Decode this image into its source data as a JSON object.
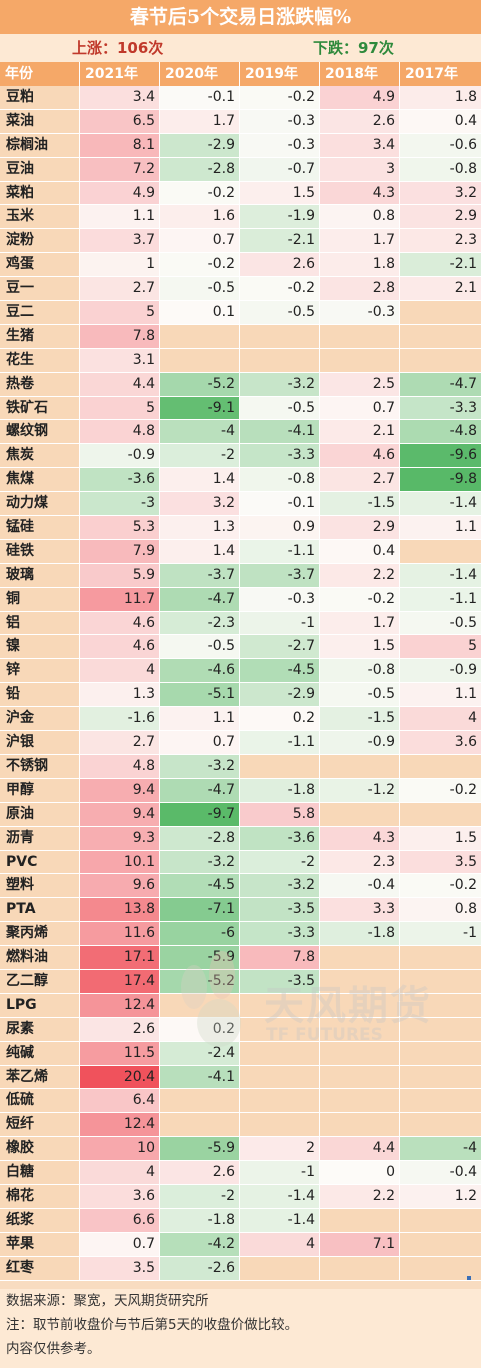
{
  "title": "春节后5个交易日涨跌幅%",
  "stats": {
    "up": "上涨：106次",
    "down": "下跌：97次"
  },
  "headers": [
    "年份",
    "2021年",
    "2020年",
    "2019年",
    "2018年",
    "2017年"
  ],
  "rows": [
    {
      "name": "豆粕",
      "v": [
        "3.4",
        "-0.1",
        "-0.2",
        "4.9",
        "1.8"
      ]
    },
    {
      "name": "菜油",
      "v": [
        "6.5",
        "1.7",
        "-0.3",
        "2.6",
        "0.4"
      ]
    },
    {
      "name": "棕榈油",
      "v": [
        "8.1",
        "-2.9",
        "-0.3",
        "3.4",
        "-0.6"
      ]
    },
    {
      "name": "豆油",
      "v": [
        "7.2",
        "-2.8",
        "-0.7",
        "3",
        "-0.8"
      ]
    },
    {
      "name": "菜粕",
      "v": [
        "4.9",
        "-0.2",
        "1.5",
        "4.3",
        "3.2"
      ]
    },
    {
      "name": "玉米",
      "v": [
        "1.1",
        "1.6",
        "-1.9",
        "0.8",
        "2.9"
      ]
    },
    {
      "name": "淀粉",
      "v": [
        "3.7",
        "0.7",
        "-2.1",
        "1.7",
        "2.3"
      ]
    },
    {
      "name": "鸡蛋",
      "v": [
        "1",
        "-0.2",
        "2.6",
        "1.8",
        "-2.1"
      ]
    },
    {
      "name": "豆一",
      "v": [
        "2.7",
        "-0.5",
        "-0.2",
        "2.8",
        "2.1"
      ]
    },
    {
      "name": "豆二",
      "v": [
        "5",
        "0.1",
        "-0.5",
        "-0.3",
        ""
      ]
    },
    {
      "name": "生猪",
      "v": [
        "7.8",
        "",
        "",
        "",
        ""
      ]
    },
    {
      "name": "花生",
      "v": [
        "3.1",
        "",
        "",
        "",
        ""
      ]
    },
    {
      "name": "热卷",
      "v": [
        "4.4",
        "-5.2",
        "-3.2",
        "2.5",
        "-4.7"
      ]
    },
    {
      "name": "铁矿石",
      "v": [
        "5",
        "-9.1",
        "-0.5",
        "0.7",
        "-3.3"
      ]
    },
    {
      "name": "螺纹钢",
      "v": [
        "4.8",
        "-4",
        "-4.1",
        "2.1",
        "-4.8"
      ]
    },
    {
      "name": "焦炭",
      "v": [
        "-0.9",
        "-2",
        "-3.3",
        "4.6",
        "-9.6"
      ]
    },
    {
      "name": "焦煤",
      "v": [
        "-3.6",
        "1.4",
        "-0.8",
        "2.7",
        "-9.8"
      ]
    },
    {
      "name": "动力煤",
      "v": [
        "-3",
        "3.2",
        "-0.1",
        "-1.5",
        "-1.4"
      ]
    },
    {
      "name": "锰硅",
      "v": [
        "5.3",
        "1.3",
        "0.9",
        "2.9",
        "1.1"
      ]
    },
    {
      "name": "硅铁",
      "v": [
        "7.9",
        "1.4",
        "-1.1",
        "0.4",
        ""
      ]
    },
    {
      "name": "玻璃",
      "v": [
        "5.9",
        "-3.7",
        "-3.7",
        "2.2",
        "-1.4"
      ]
    },
    {
      "name": "铜",
      "v": [
        "11.7",
        "-4.7",
        "-0.3",
        "-0.2",
        "-1.1"
      ]
    },
    {
      "name": "铝",
      "v": [
        "4.6",
        "-2.3",
        "-1",
        "1.7",
        "-0.5"
      ]
    },
    {
      "name": "镍",
      "v": [
        "4.6",
        "-0.5",
        "-2.7",
        "1.5",
        "5"
      ]
    },
    {
      "name": "锌",
      "v": [
        "4",
        "-4.6",
        "-4.5",
        "-0.8",
        "-0.9"
      ]
    },
    {
      "name": "铅",
      "v": [
        "1.3",
        "-5.1",
        "-2.9",
        "-0.5",
        "1.1"
      ]
    },
    {
      "name": "沪金",
      "v": [
        "-1.6",
        "1.1",
        "0.2",
        "-1.5",
        "4"
      ]
    },
    {
      "name": "沪银",
      "v": [
        "2.7",
        "0.7",
        "-1.1",
        "-0.9",
        "3.6"
      ]
    },
    {
      "name": "不锈钢",
      "v": [
        "4.8",
        "-3.2",
        "",
        "",
        ""
      ]
    },
    {
      "name": "甲醇",
      "v": [
        "9.4",
        "-4.7",
        "-1.8",
        "-1.2",
        "-0.2"
      ]
    },
    {
      "name": "原油",
      "v": [
        "9.4",
        "-9.7",
        "5.8",
        "",
        ""
      ]
    },
    {
      "name": "沥青",
      "v": [
        "9.3",
        "-2.8",
        "-3.6",
        "4.3",
        "1.5"
      ]
    },
    {
      "name": "PVC",
      "v": [
        "10.1",
        "-3.2",
        "-2",
        "2.3",
        "3.5"
      ]
    },
    {
      "name": "塑料",
      "v": [
        "9.6",
        "-4.5",
        "-3.2",
        "-0.4",
        "-0.2"
      ]
    },
    {
      "name": "PTA",
      "v": [
        "13.8",
        "-7.1",
        "-3.5",
        "3.3",
        "0.8"
      ]
    },
    {
      "name": "聚丙烯",
      "v": [
        "11.6",
        "-6",
        "-3.3",
        "-1.8",
        "-1"
      ]
    },
    {
      "name": "燃料油",
      "v": [
        "17.1",
        "-5.9",
        "7.8",
        "",
        ""
      ]
    },
    {
      "name": "乙二醇",
      "v": [
        "17.4",
        "-5.2",
        "-3.5",
        "",
        ""
      ]
    },
    {
      "name": "LPG",
      "v": [
        "12.4",
        "",
        "",
        "",
        ""
      ]
    },
    {
      "name": "尿素",
      "v": [
        "2.6",
        "0.2",
        "",
        "",
        ""
      ]
    },
    {
      "name": "纯碱",
      "v": [
        "11.5",
        "-2.4",
        "",
        "",
        ""
      ]
    },
    {
      "name": "苯乙烯",
      "v": [
        "20.4",
        "-4.1",
        "",
        "",
        ""
      ]
    },
    {
      "name": "低硫",
      "v": [
        "6.4",
        "",
        "",
        "",
        ""
      ]
    },
    {
      "name": "短纤",
      "v": [
        "12.4",
        "",
        "",
        "",
        ""
      ]
    },
    {
      "name": "橡胶",
      "v": [
        "10",
        "-5.9",
        "2",
        "4.4",
        "-4"
      ]
    },
    {
      "name": "白糖",
      "v": [
        "4",
        "2.6",
        "-1",
        "0",
        "-0.4"
      ]
    },
    {
      "name": "棉花",
      "v": [
        "3.6",
        "-2",
        "-1.4",
        "2.2",
        "1.2"
      ]
    },
    {
      "name": "纸浆",
      "v": [
        "6.6",
        "-1.8",
        "-1.4",
        "",
        ""
      ]
    },
    {
      "name": "苹果",
      "v": [
        "0.7",
        "-4.2",
        "4",
        "7.1",
        ""
      ]
    },
    {
      "name": "红枣",
      "v": [
        "3.5",
        "-2.6",
        "",
        "",
        ""
      ]
    }
  ],
  "colors": {
    "positive": "#f0525c",
    "negative": "#58b968",
    "neutral": "#fdfbf8",
    "empty": "#f8d8b8"
  },
  "footer": [
    "数据来源：聚宽，天风期货研究所",
    "注：取节前收盘价与节后第5天的收盘价做比较。",
    "内容仅供参考。"
  ],
  "watermark": {
    "cn": "天风期货",
    "en": "TF FUTURES",
    "icon": "tf-logo-icon"
  }
}
